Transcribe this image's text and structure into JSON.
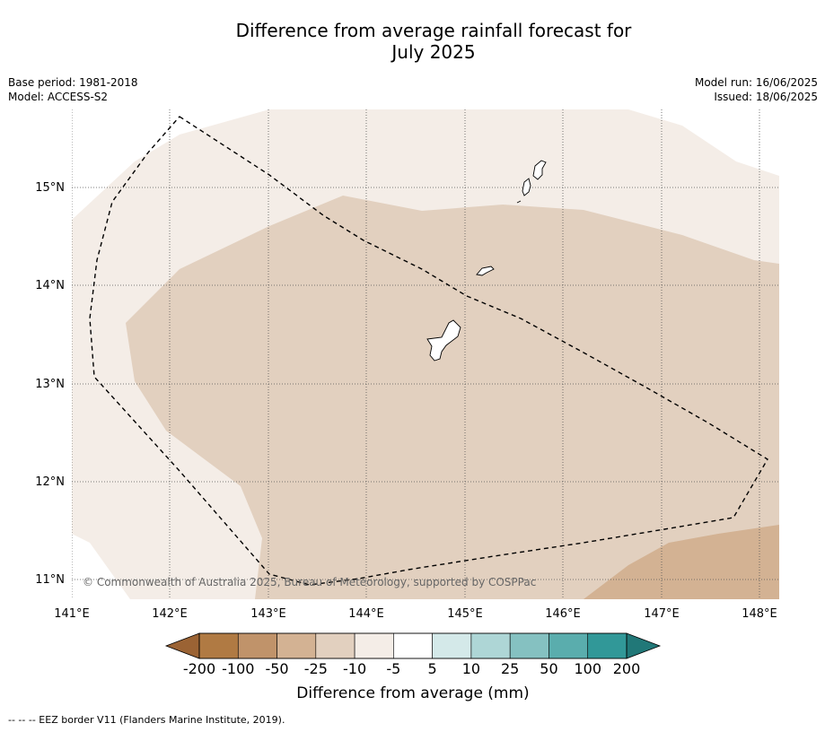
{
  "title_line1": "Difference from average rainfall forecast for",
  "title_line2": "July 2025",
  "meta": {
    "base_period": "Base period: 1981-2018",
    "model": "Model: ACCESS-S2",
    "model_run": "Model run: 16/06/2025",
    "issued": "Issued: 18/06/2025"
  },
  "map": {
    "lon_ticks": [
      "141°E",
      "142°E",
      "143°E",
      "144°E",
      "145°E",
      "146°E",
      "147°E",
      "148°E"
    ],
    "lat_ticks": [
      "15°N",
      "14°N",
      "13°N",
      "12°N",
      "11°N"
    ],
    "credit": "© Commonwealth of Australia 2025, Bureau of Meteorology, supported by COSPPac",
    "zones": [
      {
        "category": "-10 to -5",
        "color": "#f4ede7"
      },
      {
        "category": "-25 to -10",
        "color": "#e2d0bf"
      },
      {
        "category": "-50 to -25",
        "color": "#d3b293"
      }
    ]
  },
  "colorbar": {
    "label": "Difference from average (mm)",
    "ticks": [
      "-200",
      "-100",
      "-50",
      "-25",
      "-10",
      "-5",
      "5",
      "10",
      "25",
      "50",
      "100",
      "200"
    ],
    "colors": [
      "#9b6334",
      "#b07a43",
      "#c0936a",
      "#d3b293",
      "#e2d0bf",
      "#f4ede7",
      "#ffffff",
      "#d4e9e9",
      "#aed6d6",
      "#85c1c1",
      "#5aadad",
      "#319898",
      "#217878"
    ]
  },
  "footnote": "--  --  -- EEZ border V11 (Flanders Marine Institute, 2019)."
}
